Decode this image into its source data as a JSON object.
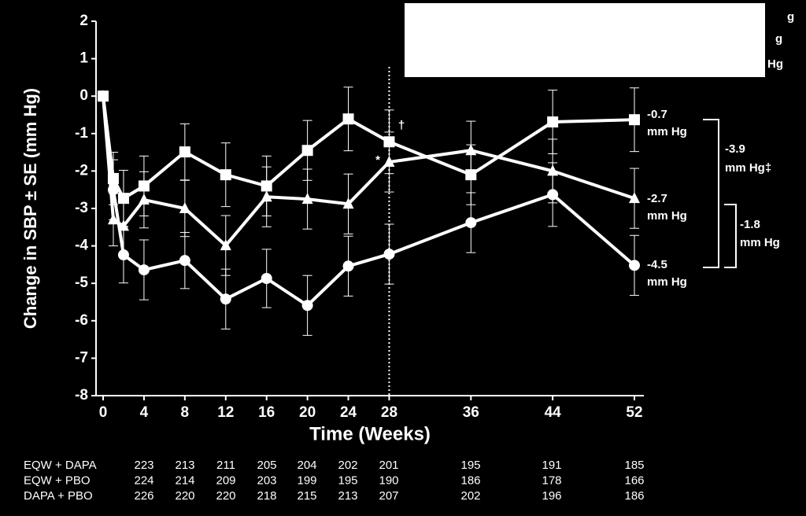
{
  "chart_data": {
    "type": "line",
    "x_label": "Time (Weeks)",
    "y_label": "Change in SBP ± SE (mm Hg)",
    "x": [
      0,
      1,
      2,
      4,
      8,
      12,
      16,
      20,
      24,
      28,
      36,
      44,
      52
    ],
    "xlim": [
      0,
      52
    ],
    "xticks": [
      0,
      4,
      8,
      12,
      16,
      20,
      24,
      28,
      36,
      44,
      52
    ],
    "ylim": [
      -8,
      2
    ],
    "yticks": [
      -8,
      -7,
      -6,
      -5,
      -4,
      -3,
      -2,
      -1,
      0,
      1,
      2
    ],
    "series": [
      {
        "color": "#ffffff",
        "marker": "circle",
        "values": [
          0,
          -2.5,
          -4.24,
          -4.64,
          -4.39,
          -5.42,
          -4.87,
          -5.59,
          -4.54,
          -4.22,
          -3.38,
          -2.63,
          -4.52
        ],
        "errors": [
          0,
          0.8,
          0.75,
          0.8,
          0.75,
          0.8,
          0.78,
          0.8,
          0.8,
          0.8,
          0.8,
          0.85,
          0.8
        ]
      },
      {
        "color": "#ffffff",
        "marker": "triangle",
        "values": [
          0,
          -3.3,
          -3.47,
          -2.77,
          -3.0,
          -3.99,
          -2.69,
          -2.75,
          -2.88,
          -1.76,
          -1.45,
          -2.0,
          -2.73
        ],
        "errors": [
          0,
          0.7,
          0.75,
          0.75,
          0.75,
          0.8,
          0.8,
          0.8,
          0.8,
          0.8,
          0.78,
          0.85,
          0.8
        ]
      },
      {
        "color": "#ffffff",
        "marker": "square",
        "values": [
          0,
          -2.2,
          -2.73,
          -2.4,
          -1.49,
          -2.1,
          -2.4,
          -1.45,
          -0.61,
          -1.22,
          -2.1,
          -0.69,
          -0.63
        ],
        "errors": [
          0,
          0.7,
          0.75,
          0.8,
          0.75,
          0.85,
          0.8,
          0.8,
          0.85,
          0.85,
          0.8,
          0.85,
          0.85
        ]
      }
    ],
    "reference_line_x": 28,
    "annotations": [
      "*",
      "†",
      "-0.7",
      "mm Hg",
      "-2.7",
      "mm Hg",
      "-4.5",
      "mm Hg",
      "-3.9",
      "mm Hg‡",
      "-1.8",
      "mm Hg",
      "g",
      "g",
      "Hg"
    ],
    "table": {
      "rows": [
        {
          "label": "EQW + DAPA",
          "values": [
            223,
            213,
            211,
            205,
            204,
            202,
            201,
            195,
            191,
            185
          ]
        },
        {
          "label": "EQW + PBO",
          "values": [
            224,
            214,
            209,
            203,
            199,
            195,
            190,
            186,
            178,
            166
          ]
        },
        {
          "label": "DAPA + PBO",
          "values": [
            226,
            220,
            220,
            218,
            215,
            213,
            207,
            202,
            196,
            186
          ]
        }
      ]
    }
  }
}
